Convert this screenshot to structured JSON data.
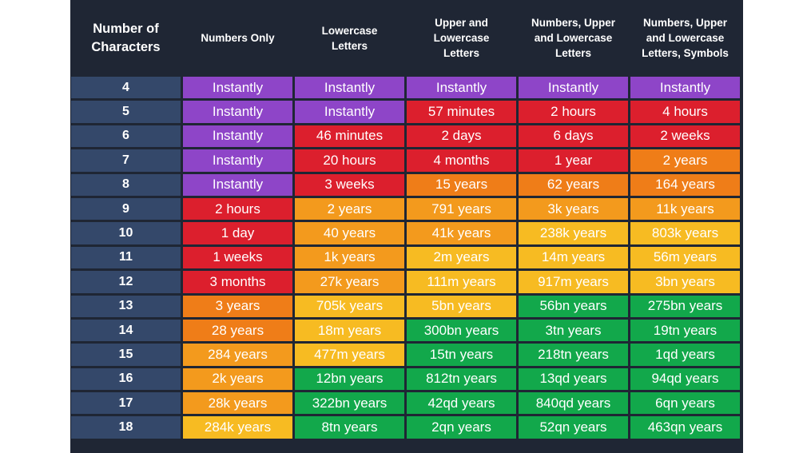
{
  "chart_data": {
    "type": "table",
    "columns": [
      "Number of Characters",
      "Numbers Only",
      "Lowercase Letters",
      "Upper and Lowercase Letters",
      "Numbers, Upper and Lowercase Letters",
      "Numbers, Upper and Lowercase Letters, Symbols"
    ],
    "rows": [
      {
        "chars": "4",
        "cells": [
          "Instantly",
          "Instantly",
          "Instantly",
          "Instantly",
          "Instantly"
        ],
        "colors": [
          "purple",
          "purple",
          "purple",
          "purple",
          "purple"
        ]
      },
      {
        "chars": "5",
        "cells": [
          "Instantly",
          "Instantly",
          "57 minutes",
          "2 hours",
          "4 hours"
        ],
        "colors": [
          "purple",
          "purple",
          "red",
          "red",
          "red"
        ]
      },
      {
        "chars": "6",
        "cells": [
          "Instantly",
          "46 minutes",
          "2 days",
          "6 days",
          "2 weeks"
        ],
        "colors": [
          "purple",
          "red",
          "red",
          "red",
          "red"
        ]
      },
      {
        "chars": "7",
        "cells": [
          "Instantly",
          "20 hours",
          "4 months",
          "1 year",
          "2 years"
        ],
        "colors": [
          "purple",
          "red",
          "red",
          "red",
          "dorange"
        ]
      },
      {
        "chars": "8",
        "cells": [
          "Instantly",
          "3 weeks",
          "15 years",
          "62 years",
          "164 years"
        ],
        "colors": [
          "purple",
          "red",
          "dorange",
          "dorange",
          "dorange"
        ]
      },
      {
        "chars": "9",
        "cells": [
          "2 hours",
          "2 years",
          "791 years",
          "3k years",
          "11k years"
        ],
        "colors": [
          "red",
          "orange",
          "orange",
          "orange",
          "orange"
        ]
      },
      {
        "chars": "10",
        "cells": [
          "1 day",
          "40 years",
          "41k years",
          "238k years",
          "803k years"
        ],
        "colors": [
          "red",
          "orange",
          "orange",
          "yellow",
          "yellow"
        ]
      },
      {
        "chars": "11",
        "cells": [
          "1 weeks",
          "1k years",
          "2m years",
          "14m years",
          "56m years"
        ],
        "colors": [
          "red",
          "orange",
          "yellow",
          "yellow",
          "yellow"
        ]
      },
      {
        "chars": "12",
        "cells": [
          "3 months",
          "27k years",
          "111m years",
          "917m years",
          "3bn years"
        ],
        "colors": [
          "red",
          "orange",
          "yellow",
          "yellow",
          "yellow"
        ]
      },
      {
        "chars": "13",
        "cells": [
          "3 years",
          "705k years",
          "5bn years",
          "56bn years",
          "275bn years"
        ],
        "colors": [
          "dorange",
          "yellow",
          "yellow",
          "green",
          "green"
        ]
      },
      {
        "chars": "14",
        "cells": [
          "28 years",
          "18m years",
          "300bn years",
          "3tn years",
          "19tn years"
        ],
        "colors": [
          "dorange",
          "yellow",
          "green",
          "green",
          "green"
        ]
      },
      {
        "chars": "15",
        "cells": [
          "284 years",
          "477m years",
          "15tn years",
          "218tn years",
          "1qd years"
        ],
        "colors": [
          "orange",
          "yellow",
          "green",
          "green",
          "green"
        ]
      },
      {
        "chars": "16",
        "cells": [
          "2k years",
          "12bn years",
          "812tn years",
          "13qd years",
          "94qd years"
        ],
        "colors": [
          "orange",
          "green",
          "green",
          "green",
          "green"
        ]
      },
      {
        "chars": "17",
        "cells": [
          "28k years",
          "322bn years",
          "42qd years",
          "840qd years",
          "6qn years"
        ],
        "colors": [
          "orange",
          "green",
          "green",
          "green",
          "green"
        ]
      },
      {
        "chars": "18",
        "cells": [
          "284k years",
          "8tn years",
          "2qn years",
          "52qn years",
          "463qn years"
        ],
        "colors": [
          "yellow",
          "green",
          "green",
          "green",
          "green"
        ]
      }
    ],
    "palette": {
      "purple": "#8e45c8",
      "red": "#dc1f2d",
      "dorange": "#ef7d18",
      "orange": "#f39a1d",
      "yellow": "#f7bb22",
      "green": "#12a84b",
      "label": "#34486a",
      "background": "#1f2634"
    }
  },
  "header": {
    "col0": [
      "Number of",
      "Characters"
    ],
    "col1": [
      "Numbers Only"
    ],
    "col2": [
      "Lowercase",
      "Letters"
    ],
    "col3": [
      "Upper and",
      "Lowercase",
      "Letters"
    ],
    "col4": [
      "Numbers, Upper",
      "and Lowercase",
      "Letters"
    ],
    "col5": [
      "Numbers, Upper",
      "and Lowercase",
      "Letters, Symbols"
    ]
  }
}
